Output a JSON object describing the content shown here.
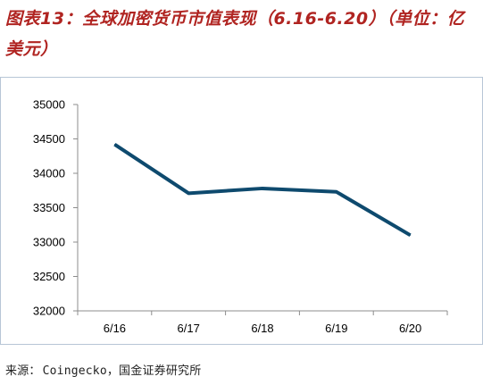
{
  "title": "图表13：全球加密货币市值表现（6.16-6.20）（单位：亿美元）",
  "source": {
    "label": "来源：",
    "text": "Coingecko，国金证券研究所"
  },
  "colors": {
    "title": "#b02421",
    "line": "#0e4a6e",
    "axis": "#8c8c8c"
  },
  "chart_data": {
    "type": "line",
    "categories": [
      "6/16",
      "6/17",
      "6/18",
      "6/19",
      "6/20"
    ],
    "series": [
      {
        "values": [
          34420,
          33710,
          33780,
          33730,
          33100
        ]
      }
    ],
    "ylim": [
      32000,
      35000
    ],
    "yticks": [
      32000,
      32500,
      33000,
      33500,
      34000,
      34500,
      35000
    ],
    "grid": false,
    "legend": "none",
    "xlabel": "",
    "ylabel": ""
  }
}
